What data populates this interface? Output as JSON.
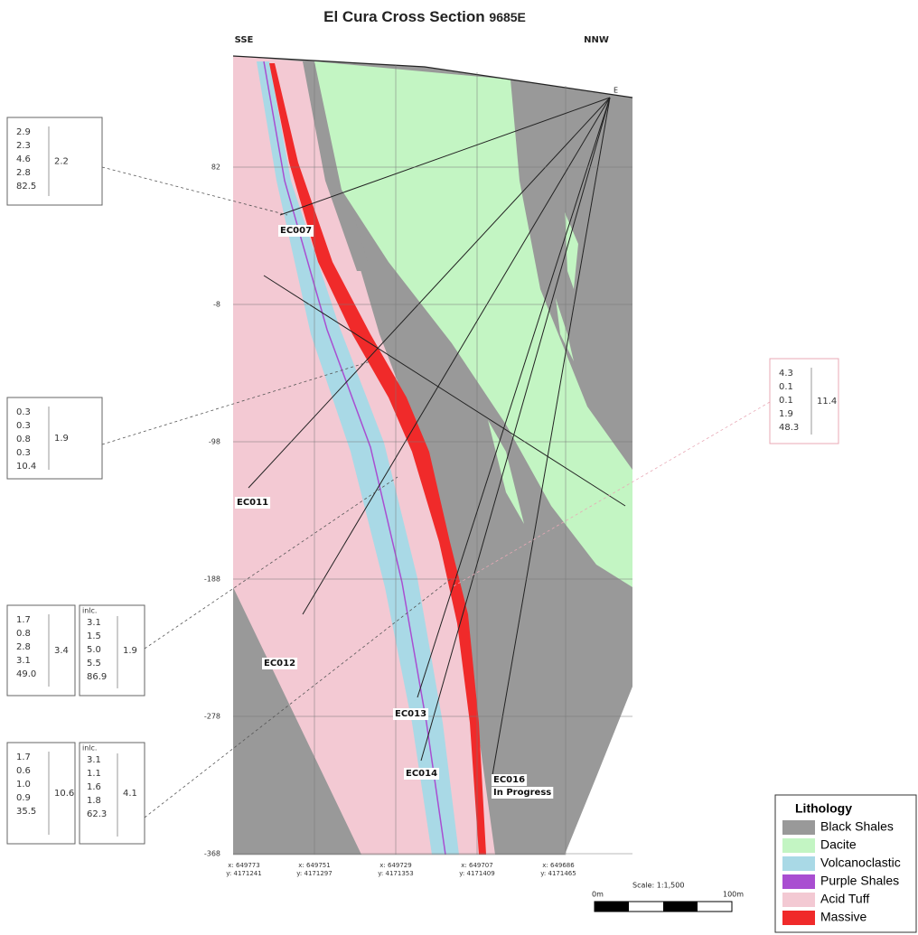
{
  "header": {
    "title": "El Cura Cross Section",
    "section": "9685E",
    "left_direction": "SSE",
    "right_direction": "NNW"
  },
  "collar": "E",
  "elevations": [
    "82",
    "-8",
    "-98",
    "-188",
    "-278",
    "-368"
  ],
  "coordinates": [
    {
      "x": "x: 649773",
      "y": "y: 4171241"
    },
    {
      "x": "x: 649751",
      "y": "y: 4171297"
    },
    {
      "x": "x: 649729",
      "y": "y: 4171353"
    },
    {
      "x": "x: 649707",
      "y": "y: 4171409"
    },
    {
      "x": "x: 649686",
      "y": "y: 4171465"
    }
  ],
  "holes": [
    "EC007",
    "EC011",
    "EC012",
    "EC013",
    "EC014",
    "EC016",
    "In Progress"
  ],
  "assays": [
    {
      "values": [
        "2.9",
        "2.3",
        "4.6",
        "2.8",
        "82.5"
      ],
      "average": "2.2"
    },
    {
      "values": [
        "0.3",
        "0.3",
        "0.8",
        "0.3",
        "10.4"
      ],
      "average": "1.9"
    },
    {
      "values": [
        "1.7",
        "0.8",
        "2.8",
        "3.1",
        "49.0"
      ],
      "average": "3.4",
      "including": {
        "label": "inlc.",
        "values": [
          "3.1",
          "1.5",
          "5.0",
          "5.5",
          "86.9"
        ],
        "average": "1.9"
      }
    },
    {
      "values": [
        "1.7",
        "0.6",
        "1.0",
        "0.9",
        "35.5"
      ],
      "average": "10.6",
      "including": {
        "label": "inlc.",
        "values": [
          "3.1",
          "1.1",
          "1.6",
          "1.8",
          "62.3"
        ],
        "average": "4.1"
      }
    },
    {
      "values": [
        "4.3",
        "0.1",
        "0.1",
        "1.9",
        "48.3"
      ],
      "average": "11.4"
    }
  ],
  "legend": {
    "title": "Lithology",
    "items": [
      {
        "label": "Black Shales",
        "color": "#999999"
      },
      {
        "label": "Dacite",
        "color": "#c3f5c3"
      },
      {
        "label": "Volcanoclastic",
        "color": "#a9d9e6"
      },
      {
        "label": "Purple Shales",
        "color": "#a94ed1"
      },
      {
        "label": "Acid Tuff",
        "color": "#f3c9d3"
      },
      {
        "label": "Massive",
        "color": "#f02a2a"
      }
    ]
  },
  "scale": {
    "label": "Scale: 1:1,500",
    "start": "0m",
    "end": "100m"
  }
}
